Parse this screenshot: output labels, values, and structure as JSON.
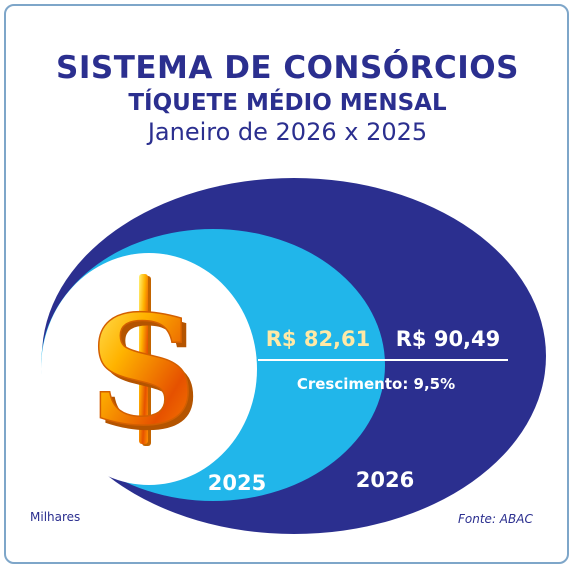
{
  "header": {
    "title": "SISTEMA DE CONSÓRCIOS",
    "subtitle": "TÍQUETE MÉDIO MENSAL",
    "period": "Janeiro de 2026 x 2025"
  },
  "chart_data": {
    "type": "nested-ellipse",
    "categories": [
      "2025",
      "2026"
    ],
    "values": [
      82.61,
      90.49
    ],
    "value_labels": [
      "R$ 82,61",
      "R$ 90,49"
    ],
    "growth_label": "Crescimento: 9,5%",
    "unit_note": "Milhares",
    "source": "Fonte: ABAC",
    "colors": {
      "outer_2026": "#2b2f8f",
      "inner_2025": "#21b6ea",
      "center": "#ffffff",
      "value_2025": "#ffe9a6",
      "title": "#2b2f8f"
    },
    "icon": "dollar-sign-icon"
  }
}
